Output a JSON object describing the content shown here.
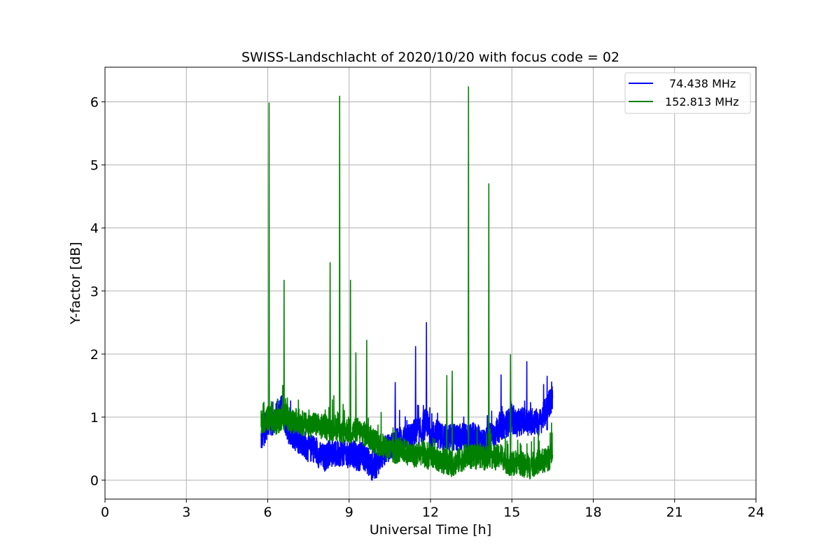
{
  "chart_data": {
    "type": "line",
    "title": "SWISS-Landschlacht of 2020/10/20 with focus code = 02",
    "xlabel": "Universal Time [h]",
    "ylabel": "Y-factor [dB]",
    "xlim": [
      0,
      24
    ],
    "ylim": [
      -0.3,
      6.55
    ],
    "xticks": [
      0,
      3,
      6,
      9,
      12,
      15,
      18,
      21,
      24
    ],
    "yticks": [
      0,
      1,
      2,
      3,
      4,
      5,
      6
    ],
    "grid": true,
    "legend_position": "top-right",
    "series": [
      {
        "name": "74.438 MHz",
        "color": "#0000ff",
        "x": [
          5.75,
          5.9,
          6.05,
          6.2,
          6.35,
          6.5,
          6.65,
          6.8,
          6.95,
          7.1,
          7.3,
          7.5,
          7.7,
          7.9,
          8.1,
          8.3,
          8.5,
          8.7,
          8.9,
          9.1,
          9.3,
          9.5,
          9.7,
          9.85,
          10.0,
          10.2,
          10.4,
          10.6,
          10.75,
          10.9,
          11.1,
          11.3,
          11.5,
          11.7,
          11.85,
          12.0,
          12.2,
          12.4,
          12.6,
          12.8,
          13.0,
          13.2,
          13.4,
          13.6,
          13.8,
          14.0,
          14.2,
          14.4,
          14.6,
          14.8,
          15.0,
          15.2,
          15.4,
          15.6,
          15.8,
          16.0,
          16.2,
          16.35,
          16.5
        ],
        "y": [
          0.65,
          0.8,
          0.95,
          0.9,
          1.05,
          1.15,
          0.95,
          0.75,
          0.7,
          0.65,
          0.6,
          0.5,
          0.5,
          0.4,
          0.35,
          0.45,
          0.4,
          0.45,
          0.4,
          0.45,
          0.35,
          0.4,
          0.3,
          0.2,
          0.25,
          0.4,
          0.5,
          0.55,
          0.6,
          0.65,
          0.65,
          0.7,
          0.8,
          0.75,
          0.95,
          0.7,
          0.75,
          0.7,
          0.65,
          0.7,
          0.65,
          0.7,
          0.65,
          0.7,
          0.65,
          0.6,
          0.7,
          0.75,
          0.85,
          0.9,
          0.95,
          0.9,
          0.95,
          0.9,
          0.95,
          0.9,
          1.05,
          1.2,
          1.3
        ]
      },
      {
        "name": "152.813 MHz",
        "color": "#008000",
        "x": [
          5.75,
          5.9,
          6.05,
          6.2,
          6.35,
          6.5,
          6.65,
          6.8,
          6.95,
          7.1,
          7.3,
          7.5,
          7.7,
          7.9,
          8.1,
          8.3,
          8.5,
          8.7,
          8.9,
          9.1,
          9.3,
          9.5,
          9.7,
          9.85,
          10.0,
          10.2,
          10.4,
          10.6,
          10.75,
          10.9,
          11.1,
          11.3,
          11.5,
          11.7,
          11.85,
          12.0,
          12.2,
          12.4,
          12.6,
          12.8,
          13.0,
          13.2,
          13.4,
          13.6,
          13.8,
          14.0,
          14.2,
          14.4,
          14.6,
          14.8,
          15.0,
          15.2,
          15.4,
          15.6,
          15.8,
          16.0,
          16.2,
          16.35,
          16.5
        ],
        "y": [
          0.9,
          0.95,
          1.0,
          0.95,
          0.9,
          1.0,
          1.05,
          0.95,
          0.9,
          0.95,
          0.9,
          0.85,
          0.9,
          0.85,
          0.85,
          0.8,
          0.85,
          0.75,
          0.8,
          0.75,
          0.8,
          0.75,
          0.7,
          0.65,
          0.6,
          0.55,
          0.5,
          0.45,
          0.45,
          0.5,
          0.45,
          0.4,
          0.4,
          0.45,
          0.35,
          0.4,
          0.35,
          0.3,
          0.3,
          0.25,
          0.3,
          0.35,
          0.4,
          0.35,
          0.4,
          0.35,
          0.4,
          0.35,
          0.4,
          0.3,
          0.25,
          0.3,
          0.25,
          0.2,
          0.25,
          0.3,
          0.3,
          0.35,
          0.4
        ]
      }
    ],
    "spikes": [
      {
        "series": 1,
        "x": 6.05,
        "y": 5.98
      },
      {
        "series": 1,
        "x": 6.6,
        "y": 3.17
      },
      {
        "series": 1,
        "x": 8.3,
        "y": 3.45
      },
      {
        "series": 1,
        "x": 8.65,
        "y": 6.09
      },
      {
        "series": 1,
        "x": 9.05,
        "y": 3.17
      },
      {
        "series": 1,
        "x": 9.25,
        "y": 2.02
      },
      {
        "series": 1,
        "x": 9.65,
        "y": 2.22
      },
      {
        "series": 1,
        "x": 12.6,
        "y": 1.66
      },
      {
        "series": 1,
        "x": 12.8,
        "y": 1.73
      },
      {
        "series": 1,
        "x": 13.4,
        "y": 6.24
      },
      {
        "series": 1,
        "x": 14.15,
        "y": 4.7
      },
      {
        "series": 1,
        "x": 14.95,
        "y": 1.99
      },
      {
        "series": 0,
        "x": 10.7,
        "y": 1.55
      },
      {
        "series": 0,
        "x": 11.45,
        "y": 2.12
      },
      {
        "series": 0,
        "x": 11.85,
        "y": 2.5
      },
      {
        "series": 0,
        "x": 14.6,
        "y": 1.67
      },
      {
        "series": 0,
        "x": 15.55,
        "y": 1.88
      },
      {
        "series": 0,
        "x": 16.3,
        "y": 1.65
      }
    ]
  }
}
